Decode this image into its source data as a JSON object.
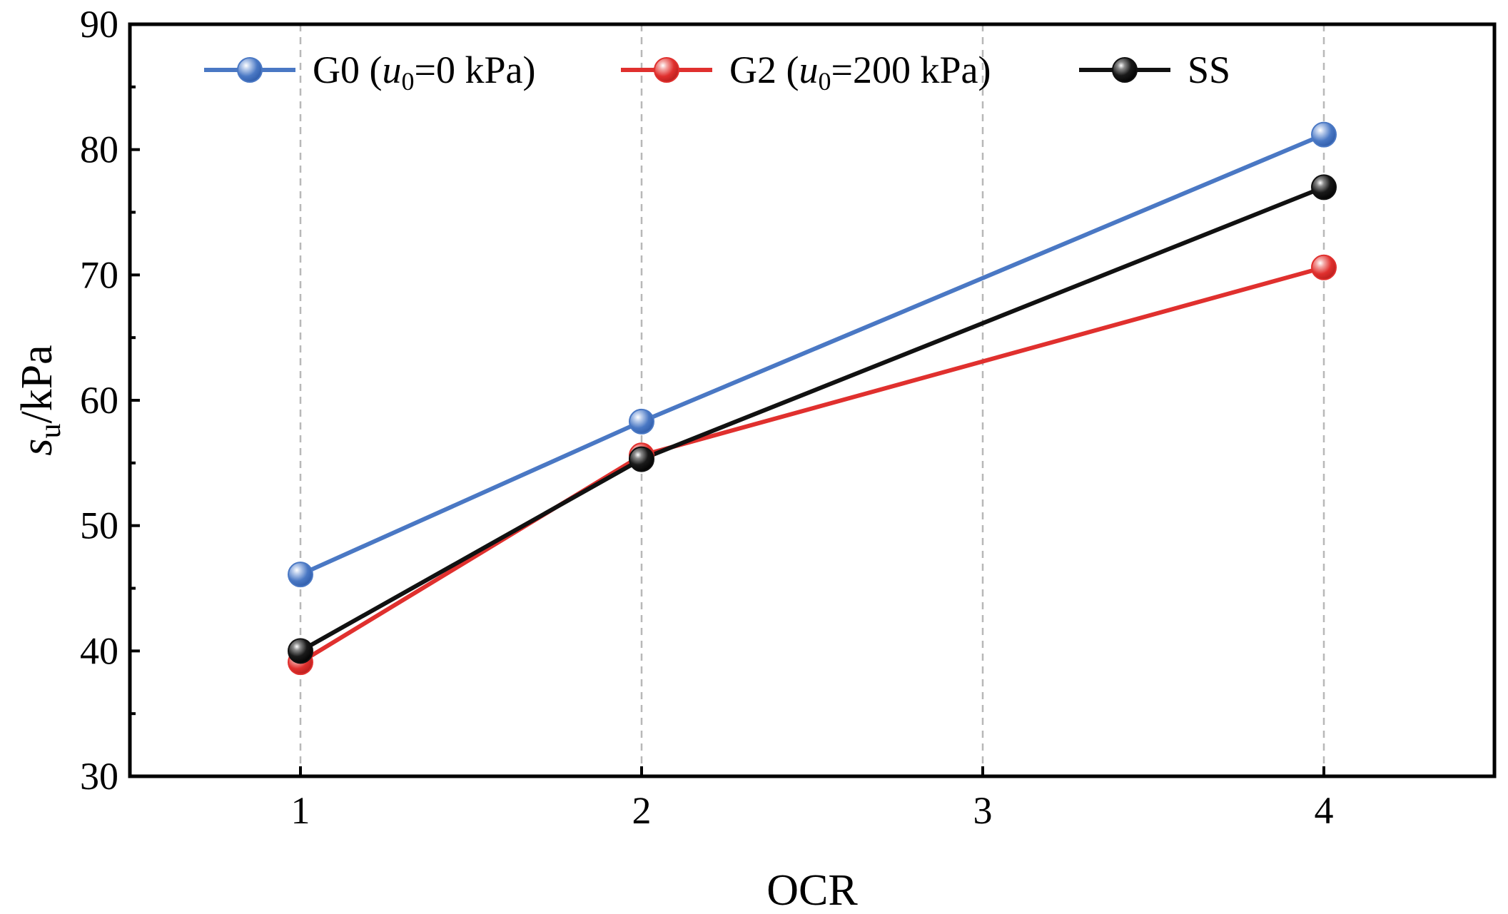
{
  "chart_data": {
    "type": "line",
    "title": "",
    "xlabel": "OCR",
    "ylabel": {
      "main": "s",
      "sub": "u",
      "unit": "/kPa"
    },
    "x": [
      1,
      2,
      4
    ],
    "xlim": [
      0.5,
      4.5
    ],
    "ylim": [
      30,
      90
    ],
    "xticks": [
      1,
      2,
      3,
      4
    ],
    "yticks": [
      30,
      40,
      50,
      60,
      70,
      80,
      90
    ],
    "grid": "vertical dashed",
    "legend_position": "top",
    "series": [
      {
        "name": "G0 (u0=0 kPa)",
        "legend": {
          "prefix": "G0 (",
          "var": "u",
          "sub": "0",
          "suffix": "=0 kPa)"
        },
        "color": "#4a78c4",
        "values": [
          46.1,
          58.3,
          81.2
        ]
      },
      {
        "name": "G2 (u0=200 kPa)",
        "legend": {
          "prefix": "G2 (",
          "var": "u",
          "sub": "0",
          "suffix": "=200 kPa)"
        },
        "color": "#e0302e",
        "values": [
          39.1,
          55.6,
          70.6
        ]
      },
      {
        "name": "SS",
        "legend": {
          "prefix": "SS",
          "var": "",
          "sub": "",
          "suffix": ""
        },
        "color": "#111111",
        "values": [
          40.0,
          55.3,
          77.0
        ]
      }
    ]
  }
}
